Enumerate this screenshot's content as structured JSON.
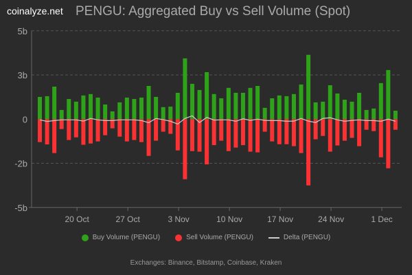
{
  "brand": "coinalyze.net",
  "title": "PENGU: Aggregated Buy vs Sell Volume (Spot)",
  "footer": "Exchanges: Binance, Bitstamp, Coinbase, Kraken",
  "colors": {
    "buy": "#2ea319",
    "sell": "#fb3233",
    "delta": "#cccccc",
    "grid": "#555555"
  },
  "chart_data": {
    "type": "bar",
    "title": "PENGU: Aggregated Buy vs Sell Volume (Spot)",
    "ylim": [
      -5,
      5
    ],
    "y_unit": "billions",
    "y_ticks": [
      {
        "v": 5,
        "label": "5b"
      },
      {
        "v": 2.5,
        "label": "3b"
      },
      {
        "v": 0,
        "label": "0"
      },
      {
        "v": -2.5,
        "label": "-2b"
      },
      {
        "v": -5,
        "label": "-5b"
      }
    ],
    "x_ticks": [
      "20 Oct",
      "27 Oct",
      "3 Nov",
      "10 Nov",
      "17 Nov",
      "24 Nov",
      "1 Dec"
    ],
    "x_tick_dates": [
      "2024-10-20",
      "2024-10-27",
      "2024-11-03",
      "2024-11-10",
      "2024-11-17",
      "2024-11-24",
      "2024-12-01"
    ],
    "grid": true,
    "legend": "bottom",
    "dates_start": "2024-10-15",
    "series": [
      {
        "name": "Buy Volume (PENGU)",
        "values": [
          1.26,
          1.3,
          1.84,
          0.52,
          1.14,
          0.99,
          1.34,
          1.42,
          1.22,
          0.83,
          0.44,
          0.95,
          1.22,
          1.14,
          1.22,
          1.88,
          1.26,
          0.68,
          0.71,
          1.49,
          3.44,
          2.0,
          1.65,
          2.66,
          1.42,
          1.18,
          1.77,
          1.49,
          1.49,
          1.77,
          1.88,
          0.64,
          1.18,
          1.34,
          1.3,
          1.42,
          1.96,
          3.64,
          0.95,
          0.99,
          1.92,
          1.45,
          1.1,
          0.99,
          1.49,
          0.52,
          0.6,
          2.04,
          2.78,
          0.48
        ]
      },
      {
        "name": "Sell Volume (PENGU)",
        "values": [
          -1.3,
          -1.43,
          -1.92,
          -0.56,
          -1.18,
          -1.03,
          -1.45,
          -1.38,
          -1.26,
          -0.91,
          -0.52,
          -0.99,
          -1.26,
          -1.18,
          -1.3,
          -2.08,
          -1.22,
          -0.71,
          -0.83,
          -1.77,
          -3.4,
          -1.81,
          -1.84,
          -2.56,
          -1.47,
          -1.22,
          -1.81,
          -1.61,
          -1.47,
          -1.84,
          -1.88,
          -0.71,
          -1.26,
          -1.42,
          -1.42,
          -1.53,
          -1.92,
          -3.75,
          -1.14,
          -0.95,
          -1.84,
          -1.49,
          -1.22,
          -1.06,
          -1.53,
          -0.6,
          -0.68,
          -2.16,
          -2.78,
          -0.6
        ]
      },
      {
        "name": "Delta (PENGU)",
        "type": "line",
        "values": "buy + sell"
      }
    ]
  },
  "legend": {
    "buy": "Buy Volume (PENGU)",
    "sell": "Sell Volume (PENGU)",
    "delta": "Delta (PENGU)"
  }
}
